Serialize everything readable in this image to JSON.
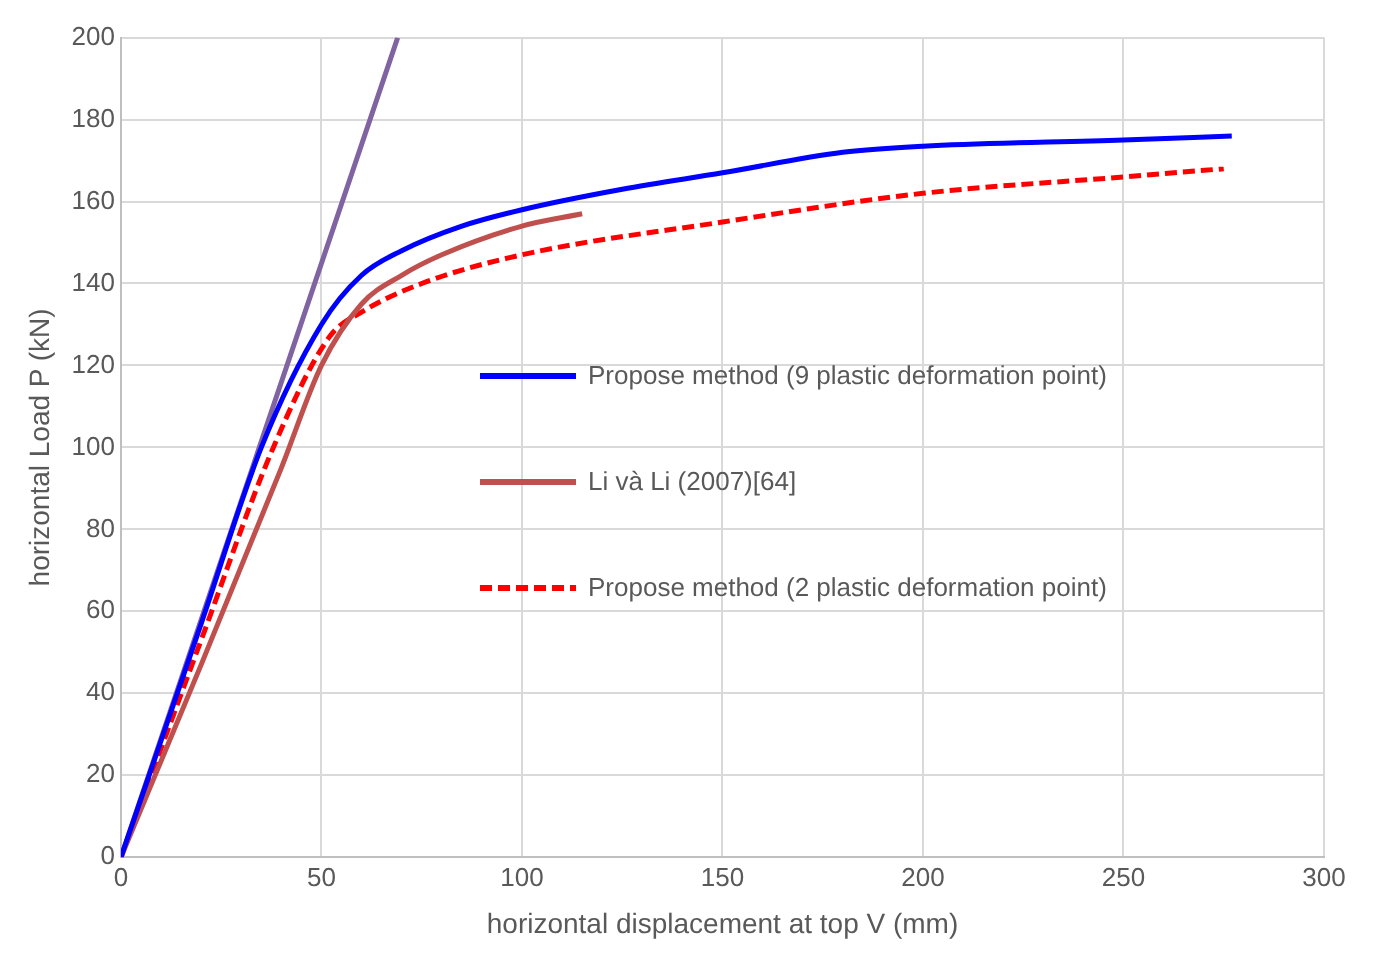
{
  "chart_data": {
    "type": "line",
    "xlabel": "horizontal displacement at top V (mm)",
    "ylabel": "horizontal Load P (kN)",
    "xlim": [
      0,
      300
    ],
    "xticks": [
      0,
      50,
      100,
      150,
      200,
      250,
      300
    ],
    "ylim": [
      0,
      200
    ],
    "yticks": [
      0,
      20,
      40,
      60,
      80,
      100,
      120,
      140,
      160,
      180,
      200
    ],
    "grid": true,
    "legend": "right",
    "marker": "none",
    "series": [
      {
        "name": "Propose method (9 plastic deformation point)",
        "color": "#0000ff",
        "line_style": "solid",
        "x": [
          0,
          20,
          35,
          50,
          60,
          70,
          85,
          100,
          125,
          150,
          180,
          200,
          250,
          277
        ],
        "values": [
          0,
          57,
          100,
          130,
          142,
          148,
          154,
          158,
          163,
          167,
          172,
          173.5,
          175,
          176
        ]
      },
      {
        "name": "Li và Li (2007)[64]",
        "color": "#c0504d",
        "line_style": "solid",
        "x": [
          0,
          20,
          40,
          50,
          60,
          70,
          80,
          100,
          115
        ],
        "values": [
          0,
          47,
          95,
          120,
          135,
          142,
          147,
          154,
          157
        ]
      },
      {
        "name": "Propose method (2 plastic deformation point)",
        "color": "#ff0000",
        "line_style": "dashed",
        "x": [
          0,
          20,
          38,
          52,
          60,
          75,
          100,
          150,
          200,
          250,
          275
        ],
        "values": [
          0,
          53,
          100,
          127,
          133,
          140,
          147,
          155,
          162,
          166,
          168
        ]
      },
      {
        "color": "#8064a2",
        "line_style": "solid",
        "x": [
          0,
          69
        ],
        "values": [
          0,
          200
        ]
      }
    ]
  }
}
